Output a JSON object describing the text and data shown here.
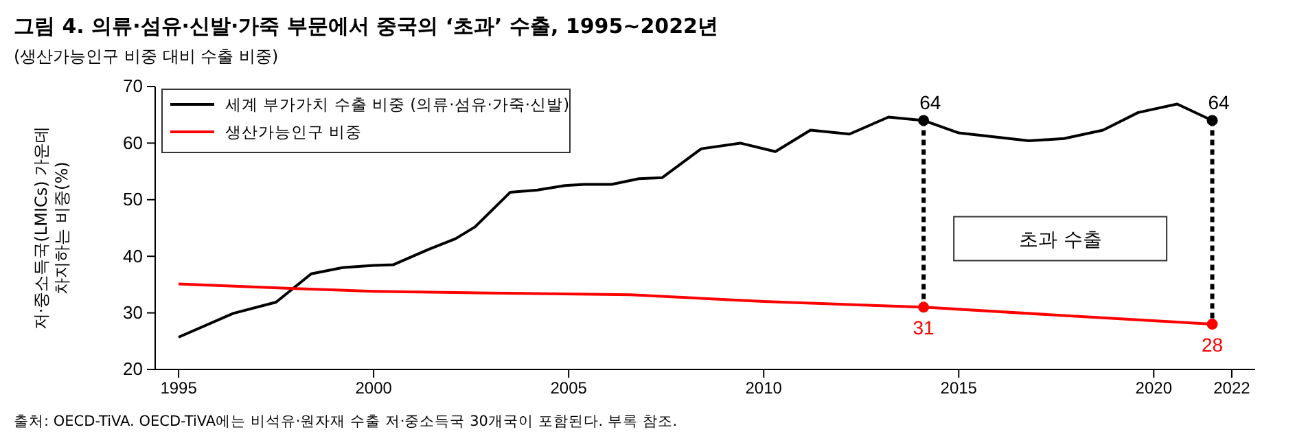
{
  "chart_data": {
    "type": "line",
    "title": "그림 4. 의류·섬유·신발·가죽 부문에서 중국의 ‘초과’ 수출, 1995~2022년",
    "subtitle": "(생산가능인구 비중 대비 수출 비중)",
    "ylabel": "저·중소득국(LMICs) 가운데\n차지하는 비중(%)",
    "xlim": [
      1994.4,
      2022.6
    ],
    "xticks": [
      1995,
      2000,
      2005,
      2010,
      2015,
      2020,
      2022
    ],
    "ylim": [
      20,
      70
    ],
    "yticks": [
      20,
      30,
      40,
      50,
      60,
      70
    ],
    "grid": false,
    "legend": "top left",
    "series": [
      {
        "name": "세계 부가가치 수출 비중 (의류·섬유·가죽·신발)",
        "color": "#000000",
        "x": [
          1995,
          1996.4,
          1997.5,
          1998.4,
          1999.2,
          2000,
          2000.5,
          2001.4,
          2002.1,
          2002.6,
          2003.5,
          2004.2,
          2004.9,
          2005.4,
          2006.1,
          2006.8,
          2007.4,
          2008.4,
          2009.4,
          2010.3,
          2011.2,
          2012.2,
          2013.2,
          2014.1,
          2015,
          2016.8,
          2017.7,
          2018.7,
          2019.6,
          2020.6,
          2021.5
        ],
        "values": [
          25.7,
          29.9,
          31.9,
          36.9,
          38,
          38.4,
          38.5,
          41.2,
          43.1,
          45.2,
          51.3,
          51.7,
          52.5,
          52.7,
          52.7,
          53.7,
          53.9,
          59,
          60,
          58.5,
          62.3,
          61.6,
          64.6,
          64,
          61.8,
          60.4,
          60.8,
          62.3,
          65.4,
          66.9,
          64
        ]
      },
      {
        "name": "생산가능인구 비중",
        "color": "#ff0000",
        "x": [
          1995,
          1998,
          2000,
          2003,
          2006.6,
          2010,
          2014.1,
          2018,
          2021.5
        ],
        "values": [
          35.1,
          34.3,
          33.8,
          33.5,
          33.2,
          32,
          31,
          29.4,
          28
        ]
      },
      {
        "type": "scatter",
        "color": "#000000",
        "x": [
          2014.1,
          2021.5
        ],
        "values": [
          64,
          64
        ],
        "value_labels": [
          "64",
          "64"
        ]
      },
      {
        "type": "scatter",
        "color": "#ff0000",
        "x": [
          2014.1,
          2021.5
        ],
        "values": [
          31,
          28
        ],
        "value_labels": [
          "31",
          "28"
        ]
      }
    ],
    "annotations": [
      "초과 수출",
      "출처: OECD-TiVA. OECD-TiVA에는 비석유·원자재 수출 저·중소득국 30개국이 포함된다. 부록 참조."
    ]
  }
}
